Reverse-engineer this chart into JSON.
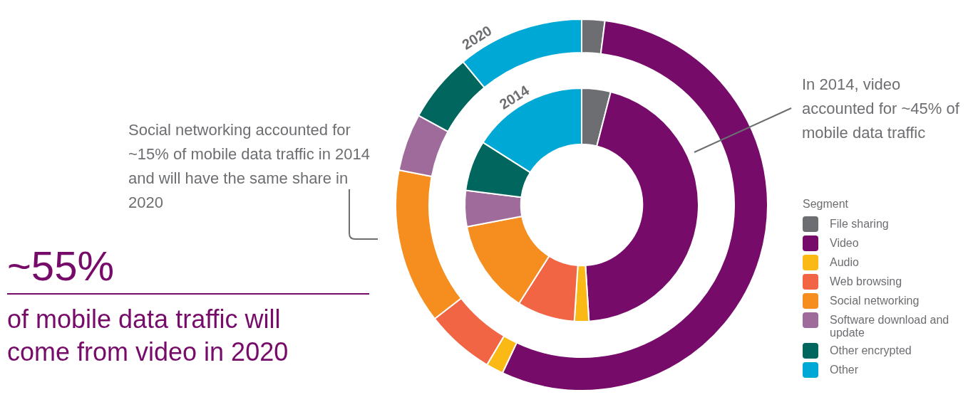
{
  "chart_data": {
    "type": "donut",
    "categories": [
      "File sharing",
      "Video",
      "Audio",
      "Web browsing",
      "Social networking",
      "Software download and update",
      "Other encrypted",
      "Other"
    ],
    "series": [
      {
        "name": "2020",
        "values": [
          2,
          55,
          1.5,
          6,
          13.5,
          5,
          6,
          11
        ],
        "colors": [
          "#6d6e71",
          "#770b6a",
          "#fbb915",
          "#f26544",
          "#f58d1f",
          "#9e6b9a",
          "#00665e",
          "#00a8d6"
        ]
      },
      {
        "name": "2014",
        "values": [
          4,
          45,
          2,
          8,
          13,
          5,
          7,
          16
        ],
        "colors": [
          "#6d6e71",
          "#770b6a",
          "#fbb915",
          "#f26544",
          "#f58d1f",
          "#9e6b9a",
          "#00665e",
          "#00a8d6"
        ]
      }
    ],
    "legend": "right",
    "legend_title": "Segment",
    "annotations": [
      "Social networking accounted for ~15% of mobile data traffic in 2014 and will have the same share in 2020",
      "In 2014, video accounted for ~45% of mobile data traffic",
      "~55%",
      "of mobile data traffic will come from video in 2020"
    ]
  }
}
